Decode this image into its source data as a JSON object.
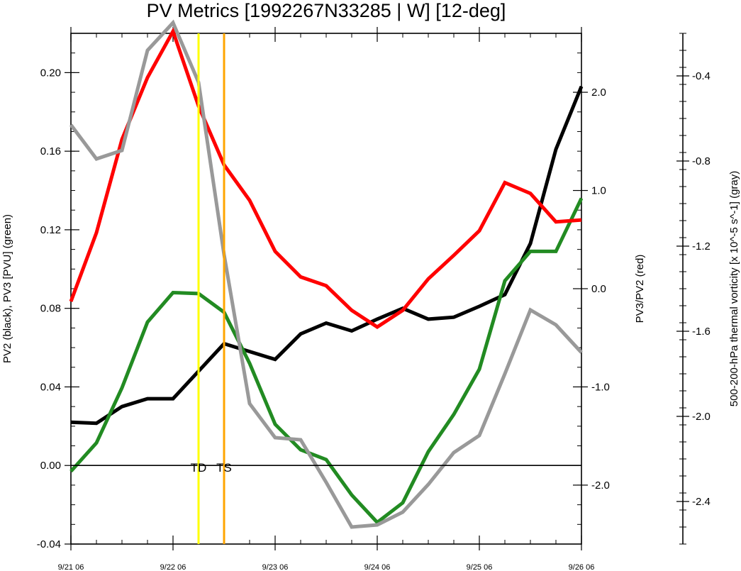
{
  "chart_data": {
    "type": "line",
    "title": "PV Metrics [1992267N33285 | W] [12-deg]",
    "x": [
      0,
      0.25,
      0.5,
      0.75,
      1.0,
      1.25,
      1.5,
      1.75,
      2.0,
      2.25,
      2.5,
      2.75,
      3.0,
      3.25,
      3.5,
      3.75,
      4.0,
      4.25,
      4.5,
      4.75,
      5.0
    ],
    "xlim": [
      0,
      5
    ],
    "x_ticks": [
      {
        "x": 0,
        "label": "9/21 06"
      },
      {
        "x": 1,
        "label": "9/22 06"
      },
      {
        "x": 2,
        "label": "9/23 06"
      },
      {
        "x": 3,
        "label": "9/24 06"
      },
      {
        "x": 4,
        "label": "9/25 06"
      },
      {
        "x": 5,
        "label": "9/26 06"
      }
    ],
    "axes": {
      "left": {
        "label": "PV2 (black), PV3 [PVU] (green)",
        "ylim": [
          -0.04,
          0.22
        ],
        "ticks": [
          -0.04,
          0.0,
          0.04,
          0.08,
          0.12,
          0.16,
          0.2
        ],
        "tick_labels": [
          "-0.04",
          "0.00",
          "0.04",
          "0.08",
          "0.12",
          "0.16",
          "0.20"
        ]
      },
      "right": {
        "label": "PV3/PV2 (red)",
        "ylim": [
          -2.6,
          2.6
        ],
        "ticks": [
          -2.0,
          -1.0,
          0.0,
          1.0,
          2.0
        ],
        "tick_labels": [
          "-2.0",
          "-1.0",
          "0.0",
          "1.0",
          "2.0"
        ]
      },
      "far_right": {
        "label": "500-200-hPa thermal vorticity [x 10^-5 s^-1] (gray)",
        "ylim": [
          -2.6,
          -0.2
        ],
        "ticks": [
          -2.4,
          -2.0,
          -1.6,
          -1.2,
          -0.8,
          -0.4
        ],
        "tick_labels": [
          "-2.4",
          "-2.0",
          "-1.6",
          "-1.2",
          "-0.8",
          "-0.4"
        ]
      }
    },
    "series": [
      {
        "color": "#000000",
        "axis": "left",
        "values": [
          0.022,
          0.0215,
          0.03,
          0.034,
          0.034,
          0.048,
          0.062,
          0.058,
          0.054,
          0.067,
          0.0725,
          0.0685,
          0.0745,
          0.08,
          0.0745,
          0.0755,
          0.081,
          0.087,
          0.113,
          0.161,
          0.193
        ]
      },
      {
        "color": "#228b22",
        "axis": "left",
        "values": [
          -0.003,
          0.0115,
          0.0395,
          0.073,
          0.088,
          0.0875,
          0.078,
          0.052,
          0.021,
          0.008,
          0.003,
          -0.015,
          -0.029,
          -0.019,
          0.007,
          0.026,
          0.049,
          0.094,
          0.109,
          0.109,
          0.136
        ]
      },
      {
        "color": "#ff0000",
        "axis": "right",
        "values": [
          -0.13,
          0.57,
          1.52,
          2.15,
          2.62,
          1.86,
          1.26,
          0.9,
          0.38,
          0.12,
          0.03,
          -0.22,
          -0.39,
          -0.22,
          0.1,
          0.34,
          0.59,
          1.08,
          0.97,
          0.68,
          0.7
        ]
      },
      {
        "color": "#999999",
        "axis": "far_right",
        "values": [
          -0.63,
          -0.79,
          -0.75,
          -0.28,
          -0.15,
          -0.43,
          -1.24,
          -1.94,
          -2.1,
          -2.11,
          -2.31,
          -2.52,
          -2.51,
          -2.45,
          -2.32,
          -2.17,
          -2.09,
          -1.8,
          -1.5,
          -1.57,
          -1.7
        ]
      }
    ],
    "vertical_lines": [
      {
        "x": 1.25,
        "color": "#ffff00",
        "label": "TD"
      },
      {
        "x": 1.5,
        "color": "#ffa500",
        "label": "TS"
      }
    ],
    "zero_line": {
      "axis": "left",
      "y": 0.0
    },
    "grid": false,
    "legend": "none"
  }
}
